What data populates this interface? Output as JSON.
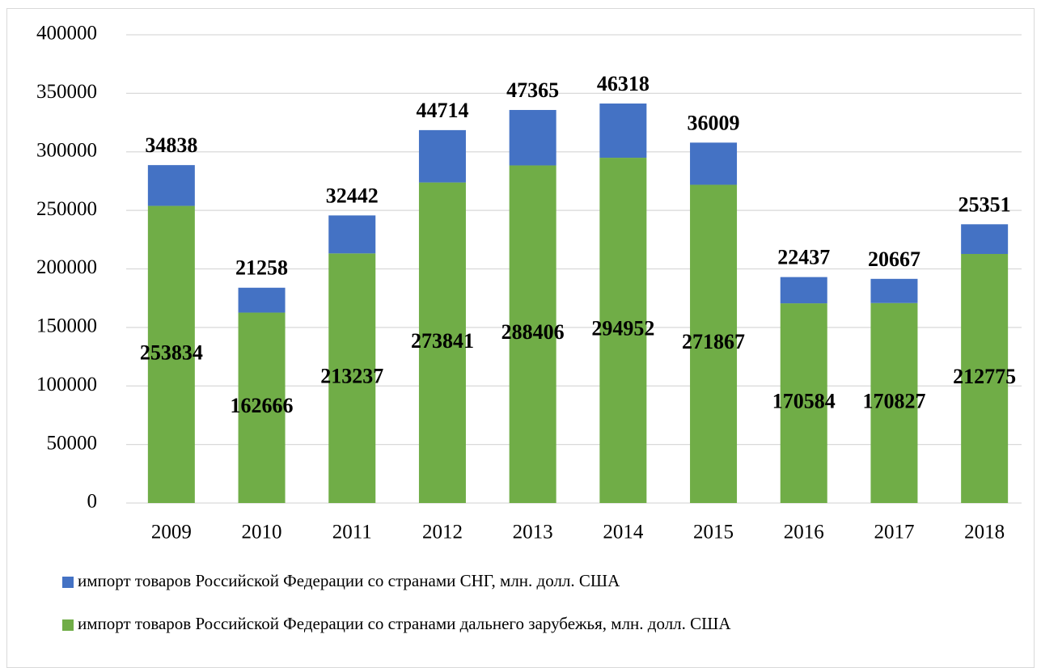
{
  "chart_data": {
    "type": "stacked_bar",
    "categories": [
      "2009",
      "2010",
      "2011",
      "2012",
      "2013",
      "2014",
      "2015",
      "2016",
      "2017",
      "2018"
    ],
    "series": [
      {
        "name": "импорт товаров Российской Федерации со странами СНГ, млн. долл. США",
        "color": "#4472c4",
        "values": [
          34838,
          21258,
          32442,
          44714,
          47365,
          46318,
          36009,
          22437,
          20667,
          25351
        ]
      },
      {
        "name": "импорт товаров Российской Федерации со странами дальнего зарубежья, млн. долл. США",
        "color": "#70ad47",
        "values": [
          253834,
          162666,
          213237,
          273841,
          288406,
          294952,
          271867,
          170584,
          170827,
          212775
        ]
      }
    ],
    "ylim": [
      0,
      400000
    ],
    "yticks": [
      0,
      50000,
      100000,
      150000,
      200000,
      250000,
      300000,
      350000,
      400000
    ],
    "grid": true
  }
}
